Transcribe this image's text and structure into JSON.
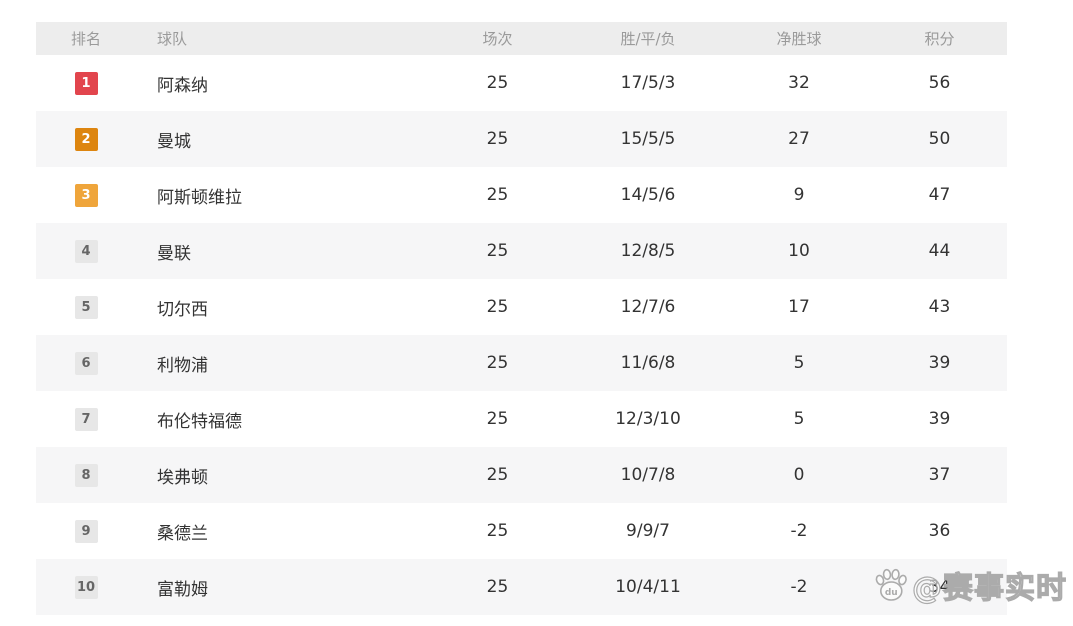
{
  "table": {
    "header": {
      "rank": "排名",
      "team": "球队",
      "played": "场次",
      "wdl": "胜/平/负",
      "gd": "净胜球",
      "points": "积分"
    },
    "rows": [
      {
        "rank": "1",
        "team": "阿森纳",
        "played": "25",
        "wdl": "17/5/3",
        "gd": "32",
        "points": "56"
      },
      {
        "rank": "2",
        "team": "曼城",
        "played": "25",
        "wdl": "15/5/5",
        "gd": "27",
        "points": "50"
      },
      {
        "rank": "3",
        "team": "阿斯顿维拉",
        "played": "25",
        "wdl": "14/5/6",
        "gd": "9",
        "points": "47"
      },
      {
        "rank": "4",
        "team": "曼联",
        "played": "25",
        "wdl": "12/8/5",
        "gd": "10",
        "points": "44"
      },
      {
        "rank": "5",
        "team": "切尔西",
        "played": "25",
        "wdl": "12/7/6",
        "gd": "17",
        "points": "43"
      },
      {
        "rank": "6",
        "team": "利物浦",
        "played": "25",
        "wdl": "11/6/8",
        "gd": "5",
        "points": "39"
      },
      {
        "rank": "7",
        "team": "布伦特福德",
        "played": "25",
        "wdl": "12/3/10",
        "gd": "5",
        "points": "39"
      },
      {
        "rank": "8",
        "team": "埃弗顿",
        "played": "25",
        "wdl": "10/7/8",
        "gd": "0",
        "points": "37"
      },
      {
        "rank": "9",
        "team": "桑德兰",
        "played": "25",
        "wdl": "9/9/7",
        "gd": "-2",
        "points": "36"
      },
      {
        "rank": "10",
        "team": "富勒姆",
        "played": "25",
        "wdl": "10/4/11",
        "gd": "-2",
        "points": "34"
      }
    ]
  },
  "watermark": {
    "handle": "@赛事实时",
    "icon": "baidu-paw-icon",
    "icon_label": "du"
  },
  "colors": {
    "rank1_badge": "#e2454d",
    "rank2_badge": "#dd850f",
    "rank3_badge": "#efa53b",
    "rank_default_badge_bg": "#e7e7e7",
    "rank_default_badge_text": "#666666",
    "header_bg": "#ededed",
    "header_text": "#9a9a9a",
    "row_alt_bg": "#f6f6f7",
    "body_text": "#333333",
    "watermark_outline": "#ababab"
  }
}
